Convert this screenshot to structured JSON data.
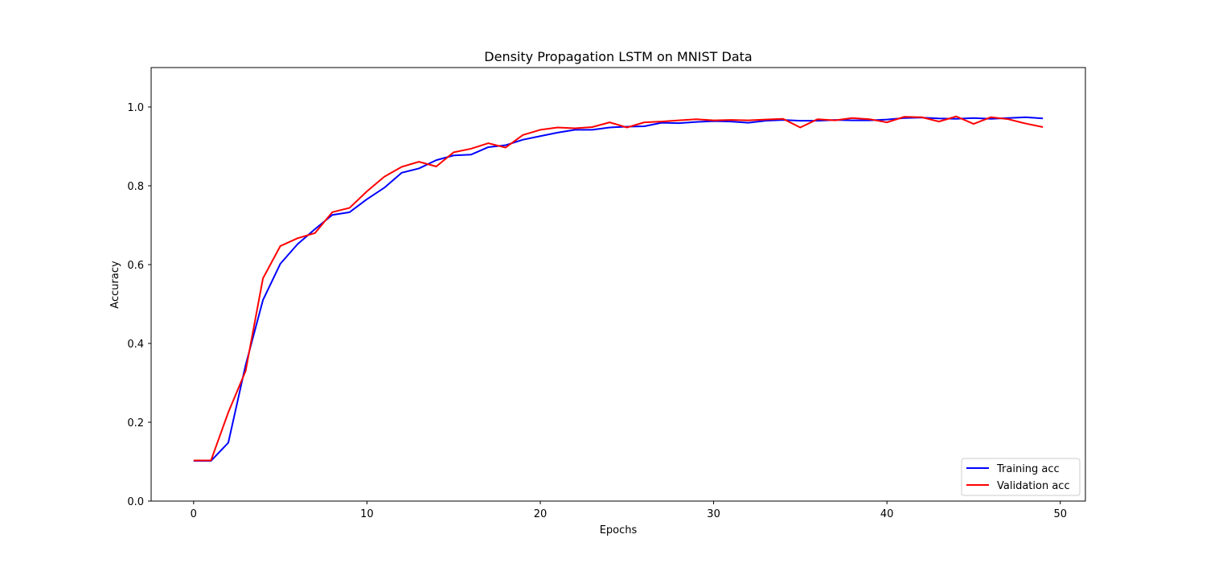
{
  "chart_data": {
    "type": "line",
    "title": "Density Propagation LSTM on MNIST Data",
    "xlabel": "Epochs",
    "ylabel": "Accuracy",
    "xlim": [
      -2.45,
      51.45
    ],
    "ylim": [
      0.0,
      1.1
    ],
    "x_ticks": [
      0,
      10,
      20,
      30,
      40,
      50
    ],
    "x_tick_labels": [
      "0",
      "10",
      "20",
      "30",
      "40",
      "50"
    ],
    "y_ticks": [
      0.0,
      0.2,
      0.4,
      0.6,
      0.8,
      1.0
    ],
    "y_tick_labels": [
      "0.0",
      "0.2",
      "0.4",
      "0.6",
      "0.8",
      "1.0"
    ],
    "grid": false,
    "legend_position": "lower right",
    "x": [
      0,
      1,
      2,
      3,
      4,
      5,
      6,
      7,
      8,
      9,
      10,
      11,
      12,
      13,
      14,
      15,
      16,
      17,
      18,
      19,
      20,
      21,
      22,
      23,
      24,
      25,
      26,
      27,
      28,
      29,
      30,
      31,
      32,
      33,
      34,
      35,
      36,
      37,
      38,
      39,
      40,
      41,
      42,
      43,
      44,
      45,
      46,
      47,
      48,
      49
    ],
    "series": [
      {
        "name": "Training acc",
        "color": "#0000ff",
        "values": [
          0.102,
          0.102,
          0.148,
          0.345,
          0.51,
          0.602,
          0.652,
          0.69,
          0.726,
          0.733,
          0.766,
          0.795,
          0.833,
          0.844,
          0.865,
          0.877,
          0.879,
          0.898,
          0.903,
          0.917,
          0.926,
          0.935,
          0.942,
          0.942,
          0.948,
          0.95,
          0.951,
          0.96,
          0.959,
          0.962,
          0.964,
          0.963,
          0.96,
          0.965,
          0.967,
          0.965,
          0.965,
          0.967,
          0.966,
          0.966,
          0.968,
          0.972,
          0.973,
          0.971,
          0.97,
          0.972,
          0.97,
          0.972,
          0.974,
          0.971
        ]
      },
      {
        "name": "Validation acc",
        "color": "#ff0000",
        "values": [
          0.103,
          0.103,
          0.225,
          0.33,
          0.565,
          0.647,
          0.667,
          0.68,
          0.733,
          0.744,
          0.786,
          0.823,
          0.848,
          0.861,
          0.849,
          0.885,
          0.894,
          0.908,
          0.897,
          0.929,
          0.942,
          0.948,
          0.946,
          0.949,
          0.961,
          0.948,
          0.961,
          0.963,
          0.966,
          0.969,
          0.966,
          0.967,
          0.966,
          0.968,
          0.97,
          0.948,
          0.969,
          0.966,
          0.972,
          0.969,
          0.961,
          0.975,
          0.974,
          0.963,
          0.976,
          0.957,
          0.974,
          0.969,
          0.958,
          0.949
        ]
      }
    ]
  }
}
